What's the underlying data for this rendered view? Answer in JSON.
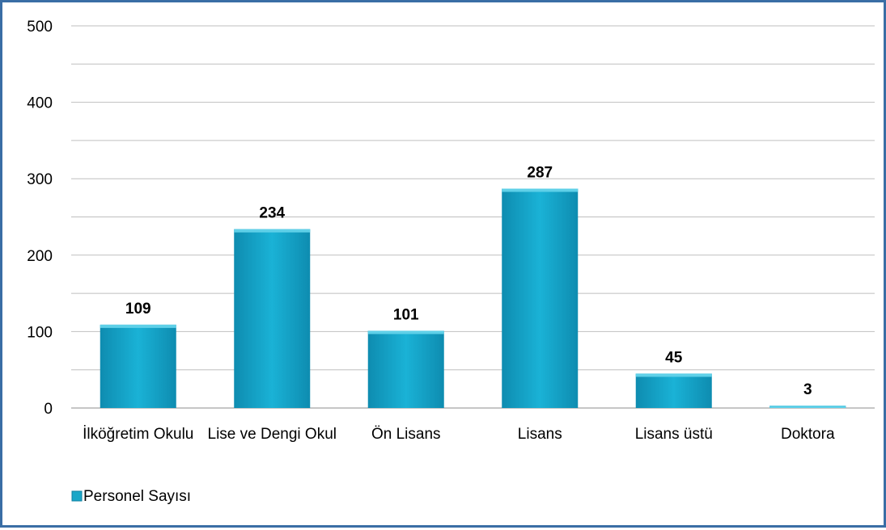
{
  "chart_data": {
    "type": "bar",
    "categories": [
      "İlköğretim Okulu",
      "Lise ve Dengi Okul",
      "Ön Lisans",
      "Lisans",
      "Lisans üstü",
      "Doktora"
    ],
    "series": [
      {
        "name": "Personel Sayısı",
        "values": [
          109,
          234,
          101,
          287,
          45,
          3
        ]
      }
    ],
    "ylim": [
      0,
      500
    ],
    "yticks": [
      0,
      100,
      200,
      300,
      400,
      500
    ],
    "grid": true,
    "legend": "bottom-left",
    "data_labels": true,
    "colors": {
      "bar": "#1AA7C8",
      "bar_top": "#5FD0E8",
      "grid": "#BFBFBF",
      "border": "#3A6EA5"
    }
  }
}
